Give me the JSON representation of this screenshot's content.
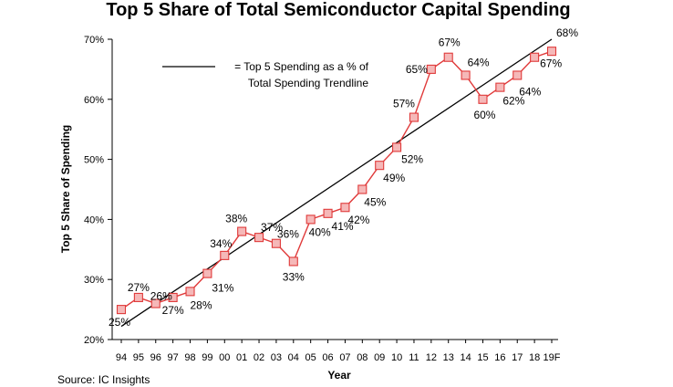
{
  "chart_data": {
    "type": "line",
    "title": "Top 5 Share of Total Semiconductor Capital Spending",
    "xlabel": "Year",
    "ylabel": "Top 5 Share of Spending",
    "categories": [
      "94",
      "95",
      "96",
      "97",
      "98",
      "99",
      "00",
      "01",
      "02",
      "03",
      "04",
      "05",
      "06",
      "07",
      "08",
      "09",
      "10",
      "11",
      "12",
      "13",
      "14",
      "15",
      "16",
      "17",
      "18",
      "19F"
    ],
    "series": [
      {
        "name": "",
        "values": [
          25,
          27,
          26,
          27,
          28,
          31,
          34,
          38,
          37,
          36,
          33,
          40,
          41,
          42,
          45,
          49,
          52,
          57,
          65,
          67,
          64,
          60,
          62,
          64,
          67,
          68
        ],
        "labels": [
          "25%",
          "27%",
          "26%",
          "27%",
          "28%",
          "31%",
          "34%",
          "38%",
          "37%",
          "36%",
          "33%",
          "40%",
          "41%",
          "42%",
          "45%",
          "49%",
          "52%",
          "57%",
          "65%",
          "67%",
          "64%",
          "60%",
          "62%",
          "64%",
          "67%",
          "68%"
        ],
        "color": "#e03a3a",
        "marker_fill": "#f5b8b8"
      }
    ],
    "trendline": {
      "label_line1": "= Top 5 Spending as a % of",
      "label_line2": "Total Spending Trendline",
      "start": {
        "x": "94",
        "y": 22.2
      },
      "end": {
        "x": "19F",
        "y": 70
      },
      "color": "#000000"
    },
    "ylim": [
      20,
      70
    ],
    "yticks": [
      20,
      30,
      40,
      50,
      60,
      70
    ],
    "ytick_labels": [
      "20%",
      "30%",
      "40%",
      "50%",
      "60%",
      "70%"
    ],
    "grid": false,
    "legend_position": "top-left"
  },
  "source": "Source: IC Insights"
}
